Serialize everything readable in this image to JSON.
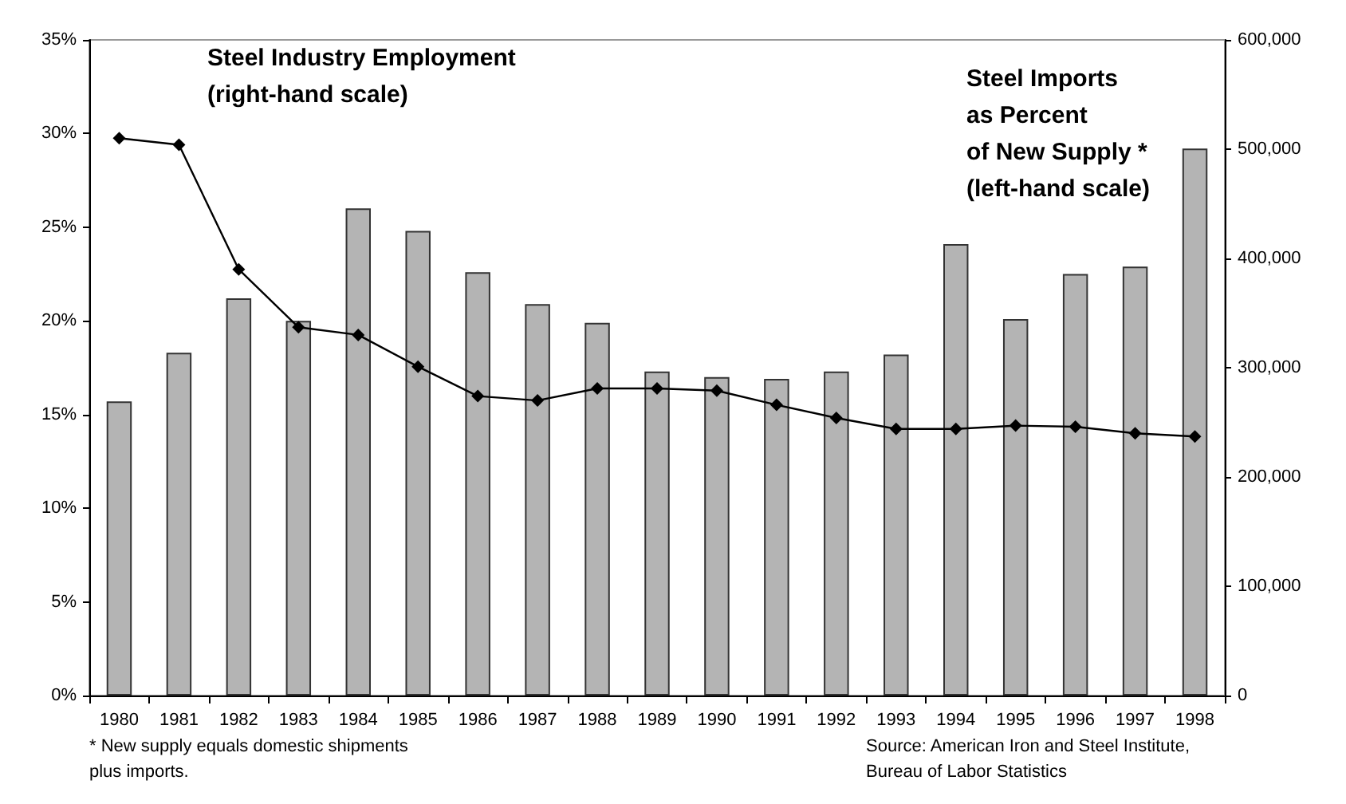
{
  "chart_data": {
    "type": "bar",
    "categories": [
      "1980",
      "1981",
      "1982",
      "1983",
      "1984",
      "1985",
      "1986",
      "1987",
      "1988",
      "1989",
      "1990",
      "1991",
      "1992",
      "1993",
      "1994",
      "1995",
      "1996",
      "1997",
      "1998"
    ],
    "series": [
      {
        "name": "Steel Imports\nas Percent\nof New Supply *\n(left-hand scale)",
        "color": "#b4b4b4",
        "values": [
          15.7,
          18.3,
          21.2,
          20.0,
          26.0,
          24.8,
          22.6,
          20.9,
          19.9,
          17.3,
          17.0,
          16.9,
          17.3,
          18.2,
          24.1,
          20.1,
          22.5,
          22.9,
          29.2
        ]
      },
      {
        "name": "Steel Industry Employment\n(right-hand scale)",
        "type": "line",
        "axis": "y2",
        "color": "#000000",
        "values": [
          510000,
          504000,
          390000,
          337000,
          330000,
          301000,
          274000,
          270000,
          281000,
          281000,
          279000,
          266000,
          254000,
          244000,
          244000,
          247000,
          246000,
          240000,
          237000
        ]
      }
    ],
    "ylim": [
      0,
      35
    ],
    "yticks": [
      {
        "value": 0,
        "label": "0%"
      },
      {
        "value": 5,
        "label": "5%"
      },
      {
        "value": 10,
        "label": "10%"
      },
      {
        "value": 15,
        "label": "15%"
      },
      {
        "value": 20,
        "label": "20%"
      },
      {
        "value": 25,
        "label": "25%"
      },
      {
        "value": 30,
        "label": "30%"
      },
      {
        "value": 35,
        "label": "35%"
      }
    ],
    "y2lim": [
      0,
      600000
    ],
    "y2ticks": [
      0,
      {
        "value": 100000,
        "label": "100,000"
      },
      {
        "value": 200000,
        "label": "200,000"
      },
      {
        "value": 300000,
        "label": "300,000"
      },
      {
        "value": 400000,
        "label": "400,000"
      },
      {
        "value": 500000,
        "label": "500,000"
      },
      {
        "value": 600000,
        "label": "600,000"
      }
    ],
    "marker": "diamond",
    "grid": false,
    "legend": false,
    "annotations": [
      "* New supply equals domestic shipments\nplus imports.",
      "Source: American Iron and Steel Institute,\nBureau of Labor Statistics"
    ]
  }
}
